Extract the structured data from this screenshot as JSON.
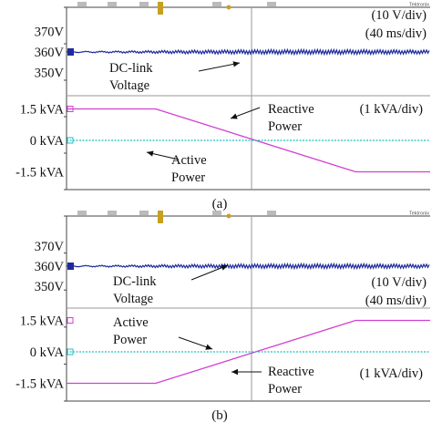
{
  "colors": {
    "dc_trace": "#1f2b9c",
    "reactive_trace": "#d23fd2",
    "active_trace": "#1bbfc0",
    "grid": "#9a9a9a",
    "frame": "#444444"
  },
  "brand": "Tektronix",
  "chart_data": [
    {
      "type": "line",
      "caption": "(a)",
      "scales": {
        "voltage": "(10 V/div)",
        "time": "(40 ms/div)",
        "power": "(1 kVA/div)"
      },
      "voltage_ticks": [
        "370V",
        "360V",
        "350V"
      ],
      "power_ticks": [
        "1.5 kVA",
        "0 kVA",
        "-1.5 kVA"
      ],
      "x_range": [
        0,
        400
      ],
      "voltage_range": [
        340,
        380
      ],
      "power_range": [
        -2,
        2
      ],
      "annotations": {
        "dc_link": [
          "DC-link",
          "Voltage"
        ],
        "reactive": [
          "Reactive",
          "Power"
        ],
        "active": [
          "Active",
          "Power"
        ]
      },
      "series": [
        {
          "name": "DC-link Voltage",
          "axis": "voltage",
          "points": [
            [
              0,
              360
            ],
            [
              400,
              360
            ]
          ],
          "ripple": 1
        },
        {
          "name": "Reactive Power",
          "axis": "power",
          "points": [
            [
              0,
              1.5
            ],
            [
              98,
              1.5
            ],
            [
              318,
              -1.5
            ],
            [
              400,
              -1.5
            ]
          ]
        },
        {
          "name": "Active Power",
          "axis": "power",
          "points": [
            [
              0,
              0
            ],
            [
              400,
              0
            ]
          ]
        }
      ]
    },
    {
      "type": "line",
      "caption": "(b)",
      "scales": {
        "voltage": "(10 V/div)",
        "time": "(40 ms/div)",
        "power": "(1 kVA/div)"
      },
      "voltage_ticks": [
        "370V",
        "360V",
        "350V"
      ],
      "power_ticks": [
        "1.5 kVA",
        "0 kVA",
        "-1.5 kVA"
      ],
      "x_range": [
        0,
        400
      ],
      "voltage_range": [
        340,
        380
      ],
      "power_range": [
        -2,
        2
      ],
      "annotations": {
        "dc_link": [
          "DC-link",
          "Voltage"
        ],
        "active": [
          "Active",
          "Power"
        ],
        "reactive": [
          "Reactive",
          "Power"
        ]
      },
      "series": [
        {
          "name": "DC-link Voltage",
          "axis": "voltage",
          "points": [
            [
              0,
              360
            ],
            [
              400,
              360
            ]
          ],
          "ripple": 1
        },
        {
          "name": "Reactive Power",
          "axis": "power",
          "points": [
            [
              0,
              -1.5
            ],
            [
              98,
              -1.5
            ],
            [
              318,
              1.5
            ],
            [
              400,
              1.5
            ]
          ]
        },
        {
          "name": "Active Power",
          "axis": "power",
          "points": [
            [
              0,
              0
            ],
            [
              400,
              0
            ]
          ]
        }
      ]
    }
  ]
}
